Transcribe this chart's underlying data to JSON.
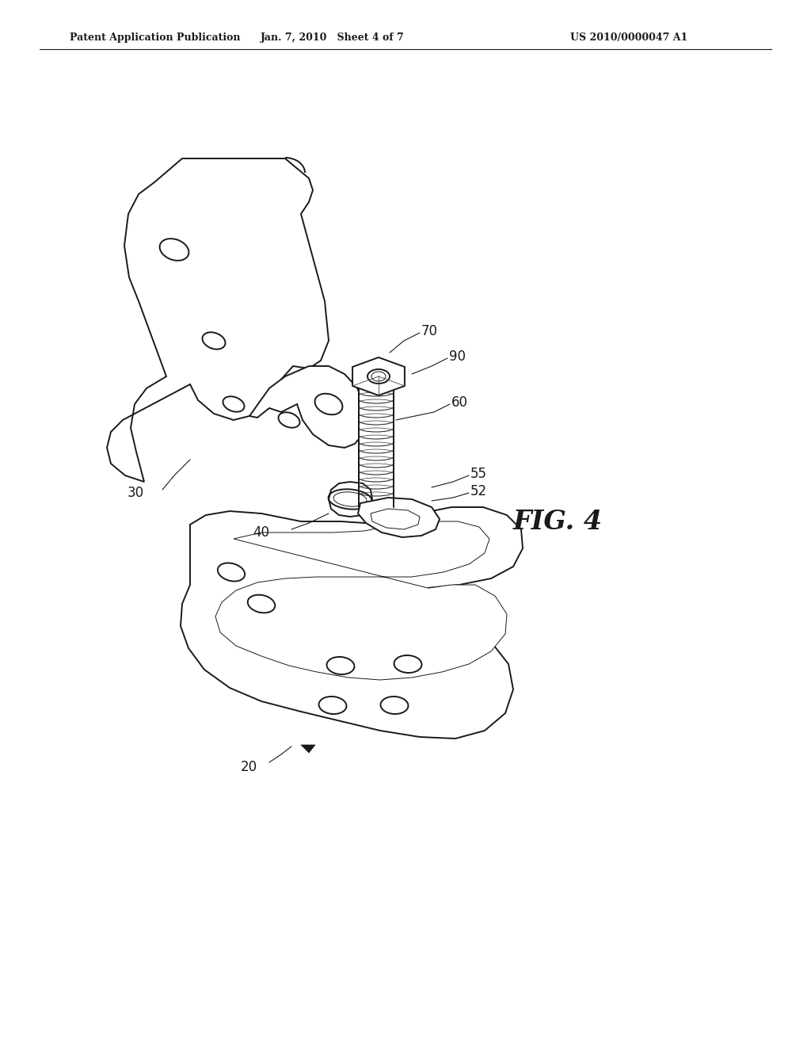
{
  "bg_color": "#ffffff",
  "line_color": "#1a1a1a",
  "header_left": "Patent Application Publication",
  "header_mid": "Jan. 7, 2010   Sheet 4 of 7",
  "header_right": "US 2010/0000047 A1",
  "fig_label": "FIG. 4",
  "label_fs": 12,
  "header_fs": 9,
  "fig_fs": 24,
  "lw_main": 1.4,
  "lw_thin": 0.7,
  "lw_ref": 0.8
}
